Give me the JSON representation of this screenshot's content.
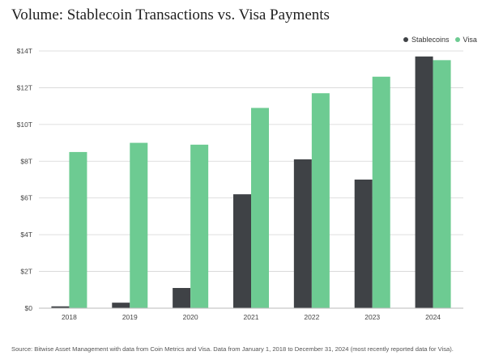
{
  "chart_data": {
    "type": "bar",
    "title": "Volume: Stablecoin Transactions vs. Visa Payments",
    "categories": [
      "2018",
      "2019",
      "2020",
      "2021",
      "2022",
      "2023",
      "2024"
    ],
    "series": [
      {
        "name": "Stablecoins",
        "color": "#3f4246",
        "values": [
          0.1,
          0.3,
          1.1,
          6.2,
          8.1,
          7.0,
          13.7
        ]
      },
      {
        "name": "Visa",
        "color": "#6dcb92",
        "values": [
          8.5,
          9.0,
          8.9,
          10.9,
          11.7,
          12.6,
          13.5
        ]
      }
    ],
    "yticks": [
      "$0",
      "$2T",
      "$4T",
      "$6T",
      "$8T",
      "$10T",
      "$12T",
      "$14T"
    ],
    "ylim": [
      0,
      14
    ],
    "xlabel": "",
    "ylabel": "",
    "grid": true,
    "legend_position": "top-right",
    "source": "Source: Bitwise Asset Management with data from Coin Metrics and Visa. Data from January 1, 2018 to December 31, 2024 (most recently reported data for Visa)."
  }
}
